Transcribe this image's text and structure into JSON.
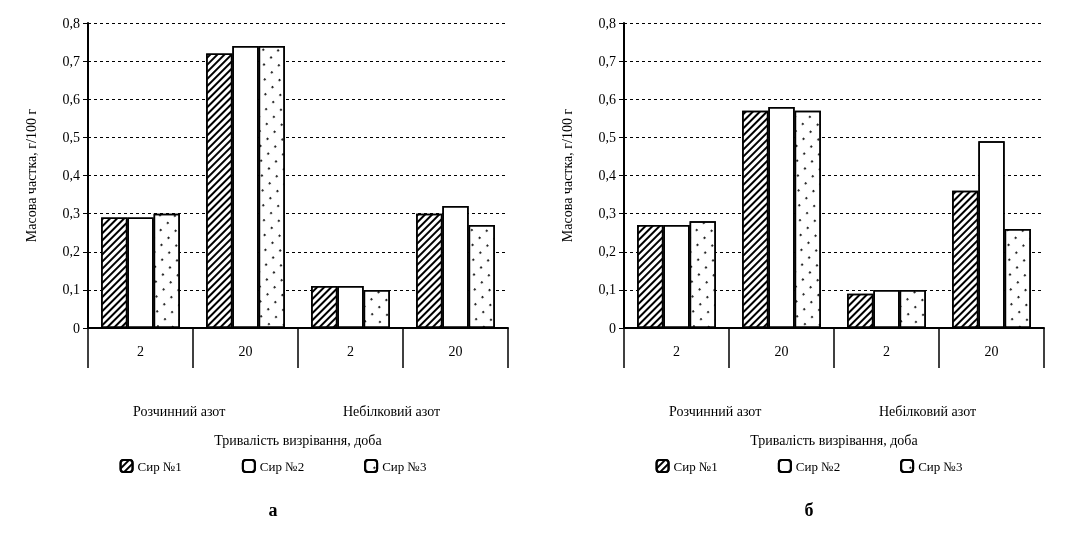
{
  "chart_data": [
    {
      "type": "bar",
      "title": "а",
      "xlabel": "Тривалість визрівання, доба",
      "ylabel": "Масова частка, г/100 г",
      "categories": [
        "2",
        "20",
        "2",
        "20"
      ],
      "annotations": [
        "Розчинний азот",
        "Небілковий азот"
      ],
      "series": [
        {
          "name": "Сир №1",
          "color": "#ffffff",
          "values": [
            0.29,
            0.72,
            0.11,
            0.3
          ]
        },
        {
          "name": "Сир №2",
          "color": "#ffffff",
          "values": [
            0.29,
            0.74,
            0.11,
            0.32
          ]
        },
        {
          "name": "Сир №3",
          "color": "#ffffff",
          "values": [
            0.3,
            0.74,
            0.1,
            0.27
          ]
        }
      ],
      "ylim": [
        0,
        0.8
      ],
      "yticks": [
        0,
        {
          "value": 0.1,
          "label": "0,1"
        },
        {
          "value": 0.2,
          "label": "0,2"
        },
        {
          "value": 0.3,
          "label": "0,3"
        },
        {
          "value": 0.4,
          "label": "0,4"
        },
        {
          "value": 0.5,
          "label": "0,5"
        },
        {
          "value": 0.6,
          "label": "0,6"
        },
        {
          "value": 0.7,
          "label": "0,7"
        },
        {
          "value": 0.8,
          "label": "0,8"
        }
      ],
      "grid": "y",
      "legend": "bottom"
    },
    {
      "type": "bar",
      "title": "б",
      "xlabel": "Тривалість визрівання, доба",
      "ylabel": "Масова частка, г/100 г",
      "categories": [
        "2",
        "20",
        "2",
        "20"
      ],
      "annotations": [
        "Розчинний азот",
        "Небілковий азот"
      ],
      "series": [
        {
          "name": "Сир №1",
          "color": "#ffffff",
          "values": [
            0.27,
            0.57,
            0.09,
            0.36
          ]
        },
        {
          "name": "Сир №2",
          "color": "#ffffff",
          "values": [
            0.27,
            0.58,
            0.1,
            0.49
          ]
        },
        {
          "name": "Сир №3",
          "color": "#ffffff",
          "values": [
            0.28,
            0.57,
            0.1,
            0.26
          ]
        }
      ],
      "ylim": [
        0,
        0.8
      ],
      "yticks": [
        0,
        {
          "value": 0.1,
          "label": "0,1"
        },
        {
          "value": 0.2,
          "label": "0,2"
        },
        {
          "value": 0.3,
          "label": "0,3"
        },
        {
          "value": 0.4,
          "label": "0,4"
        },
        {
          "value": 0.5,
          "label": "0,5"
        },
        {
          "value": 0.6,
          "label": "0,6"
        },
        {
          "value": 0.7,
          "label": "0,7"
        },
        {
          "value": 0.8,
          "label": "0,8"
        }
      ],
      "grid": "y",
      "legend": "bottom"
    }
  ]
}
